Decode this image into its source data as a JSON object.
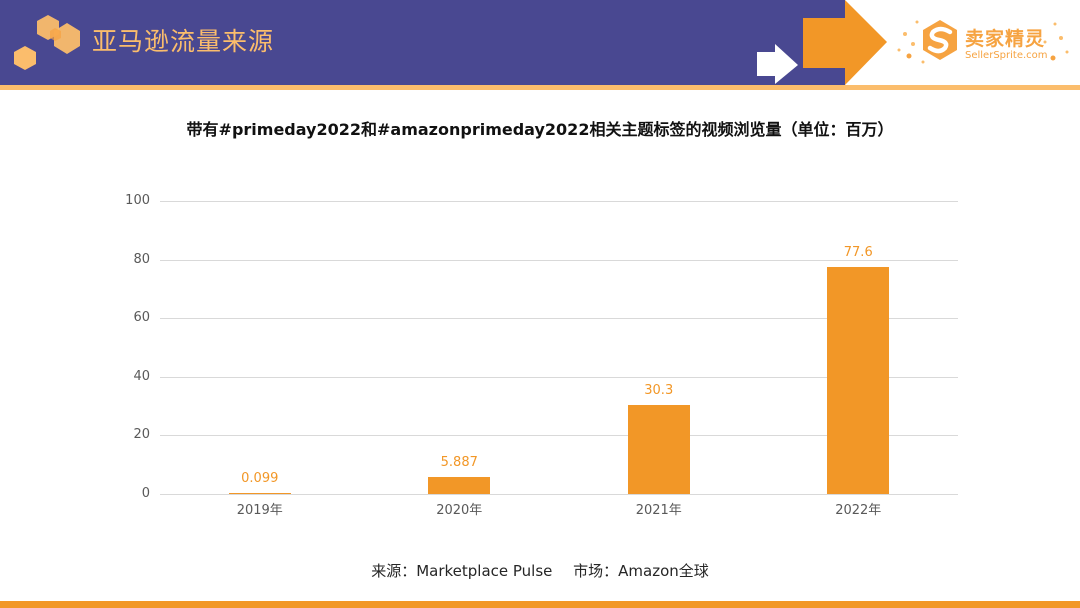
{
  "header": {
    "title": "亚马逊流量来源",
    "band_color": "#494891",
    "accent_color": "#fbbd6c",
    "logo": {
      "icon": "sellersprite-s-hexagon-icon",
      "name_cn": "卖家精灵",
      "name_en": "SellerSprite.com"
    }
  },
  "chart_title": "带有#primeday2022和#amazonprimeday2022相关主题标签的视频浏览量（单位：百万）",
  "chart_data": {
    "type": "bar",
    "title": "带有#primeday2022和#amazonprimeday2022相关主题标签的视频浏览量（单位：百万）",
    "categories": [
      "2019年",
      "2020年",
      "2021年",
      "2022年"
    ],
    "values": [
      0.099,
      5.887,
      30.3,
      77.6
    ],
    "value_labels": [
      "0.099",
      "5.887",
      "30.3",
      "77.6"
    ],
    "xlabel": "",
    "ylabel": "",
    "ylim": [
      0,
      100
    ],
    "yticks": [
      "0",
      "20",
      "40",
      "60",
      "80",
      "100"
    ],
    "grid": true,
    "legend": null,
    "bar_color": "#f29727"
  },
  "footer": {
    "source": "来源：Marketplace Pulse",
    "market": "市场：Amazon全球"
  }
}
